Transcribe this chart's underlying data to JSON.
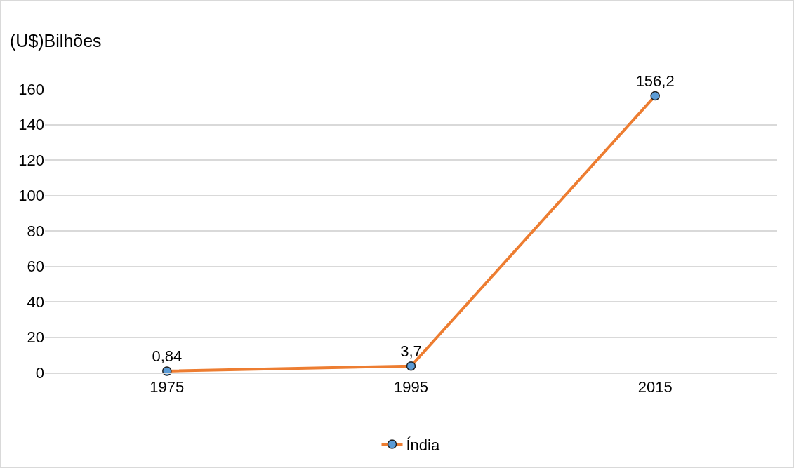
{
  "chart_data": {
    "type": "line",
    "ylabel": "(U$)Bilhões",
    "categories": [
      "1975",
      "1995",
      "2015"
    ],
    "series": [
      {
        "name": "Índia",
        "color": "#ed7d31",
        "colors": [
          "#5b9bd5",
          "#5b9bd5",
          "#5b9bd5"
        ],
        "values": [
          0.84,
          3.7,
          156.2
        ],
        "value_labels": [
          "0,84",
          "3,7",
          "156,2"
        ]
      }
    ],
    "ylim": [
      0,
      160
    ],
    "yticks": [
      0,
      20,
      40,
      60,
      80,
      100,
      120,
      140,
      160
    ],
    "grid": "y",
    "legend": "bottom",
    "marker": "circle",
    "line_style": "solid"
  }
}
